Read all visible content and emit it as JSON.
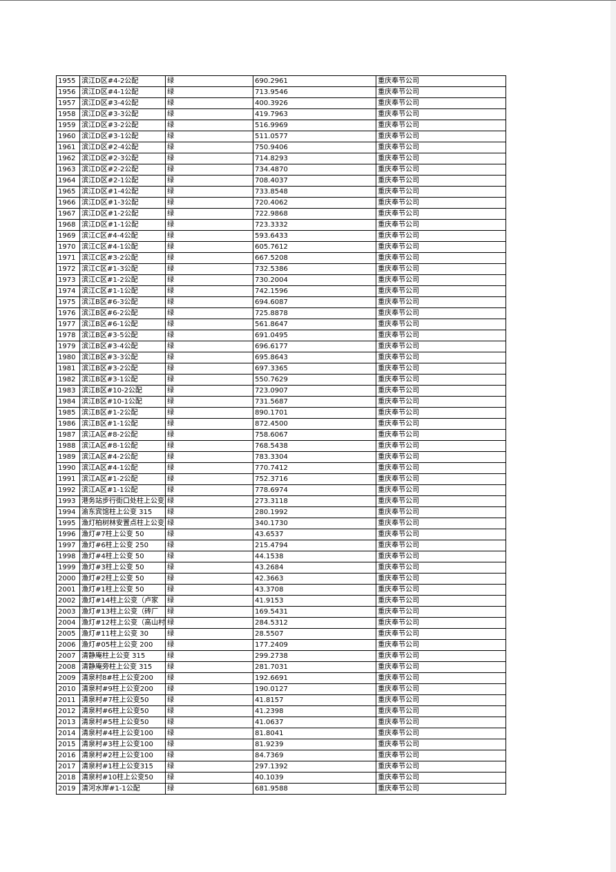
{
  "table": {
    "rows": [
      [
        "1955",
        "滨江D区#4-2公配",
        "绿",
        "690.2961",
        "重庆奉节公司"
      ],
      [
        "1956",
        "滨江D区#4-1公配",
        "绿",
        "713.9546",
        "重庆奉节公司"
      ],
      [
        "1957",
        "滨江D区#3-4公配",
        "绿",
        "400.3926",
        "重庆奉节公司"
      ],
      [
        "1958",
        "滨江D区#3-3公配",
        "绿",
        "419.7963",
        "重庆奉节公司"
      ],
      [
        "1959",
        "滨江D区#3-2公配",
        "绿",
        "516.9969",
        "重庆奉节公司"
      ],
      [
        "1960",
        "滨江D区#3-1公配",
        "绿",
        "511.0577",
        "重庆奉节公司"
      ],
      [
        "1961",
        "滨江D区#2-4公配",
        "绿",
        "750.9406",
        "重庆奉节公司"
      ],
      [
        "1962",
        "滨江D区#2-3公配",
        "绿",
        "714.8293",
        "重庆奉节公司"
      ],
      [
        "1963",
        "滨江D区#2-2公配",
        "绿",
        "734.4870",
        "重庆奉节公司"
      ],
      [
        "1964",
        "滨江D区#2-1公配",
        "绿",
        "708.4037",
        "重庆奉节公司"
      ],
      [
        "1965",
        "滨江D区#1-4公配",
        "绿",
        "733.8548",
        "重庆奉节公司"
      ],
      [
        "1966",
        "滨江D区#1-3公配",
        "绿",
        "720.4062",
        "重庆奉节公司"
      ],
      [
        "1967",
        "滨江D区#1-2公配",
        "绿",
        "722.9868",
        "重庆奉节公司"
      ],
      [
        "1968",
        "滨江D区#1-1公配",
        "绿",
        "723.3332",
        "重庆奉节公司"
      ],
      [
        "1969",
        "滨江C区#4-4公配",
        "绿",
        "593.6433",
        "重庆奉节公司"
      ],
      [
        "1970",
        "滨江C区#4-1公配",
        "绿",
        "605.7612",
        "重庆奉节公司"
      ],
      [
        "1971",
        "滨江C区#3-2公配",
        "绿",
        "667.5208",
        "重庆奉节公司"
      ],
      [
        "1972",
        "滨江C区#1-3公配",
        "绿",
        "732.5386",
        "重庆奉节公司"
      ],
      [
        "1973",
        "滨江C区#1-2公配",
        "绿",
        "730.2004",
        "重庆奉节公司"
      ],
      [
        "1974",
        "滨江C区#1-1公配",
        "绿",
        "742.1596",
        "重庆奉节公司"
      ],
      [
        "1975",
        "滨江B区#6-3公配",
        "绿",
        "694.6087",
        "重庆奉节公司"
      ],
      [
        "1976",
        "滨江B区#6-2公配",
        "绿",
        "725.8878",
        "重庆奉节公司"
      ],
      [
        "1977",
        "滨江B区#6-1公配",
        "绿",
        "561.8647",
        "重庆奉节公司"
      ],
      [
        "1978",
        "滨江B区#3-5公配",
        "绿",
        "691.0495",
        "重庆奉节公司"
      ],
      [
        "1979",
        "滨江B区#3-4公配",
        "绿",
        "696.6177",
        "重庆奉节公司"
      ],
      [
        "1980",
        "滨江B区#3-3公配",
        "绿",
        "695.8643",
        "重庆奉节公司"
      ],
      [
        "1981",
        "滨江B区#3-2公配",
        "绿",
        "697.3365",
        "重庆奉节公司"
      ],
      [
        "1982",
        "滨江B区#3-1公配",
        "绿",
        "550.7629",
        "重庆奉节公司"
      ],
      [
        "1983",
        "滨江B区#10-2公配",
        "绿",
        "723.0907",
        "重庆奉节公司"
      ],
      [
        "1984",
        "滨江B区#10-1公配",
        "绿",
        "731.5687",
        "重庆奉节公司"
      ],
      [
        "1985",
        "滨江B区#1-2公配",
        "绿",
        "890.1701",
        "重庆奉节公司"
      ],
      [
        "1986",
        "滨江B区#1-1公配",
        "绿",
        "872.4500",
        "重庆奉节公司"
      ],
      [
        "1987",
        "滨江A区#8-2公配",
        "绿",
        "758.6067",
        "重庆奉节公司"
      ],
      [
        "1988",
        "滨江A区#8-1公配",
        "绿",
        "768.5438",
        "重庆奉节公司"
      ],
      [
        "1989",
        "滨江A区#4-2公配",
        "绿",
        "783.3304",
        "重庆奉节公司"
      ],
      [
        "1990",
        "滨江A区#4-1公配",
        "绿",
        "770.7412",
        "重庆奉节公司"
      ],
      [
        "1991",
        "滨江A区#1-2公配",
        "绿",
        "752.3716",
        "重庆奉节公司"
      ],
      [
        "1992",
        "滨江A区#1-1公配",
        "绿",
        "778.6974",
        "重庆奉节公司"
      ],
      [
        "1993",
        "港务站步行街口处柱上公变",
        "绿",
        "273.3118",
        "重庆奉节公司"
      ],
      [
        "1994",
        "渝东宾馆柱上公变 315",
        "绿",
        "280.1992",
        "重庆奉节公司"
      ],
      [
        "1995",
        "渔灯柏树林安置点柱上公变",
        "绿",
        "340.1730",
        "重庆奉节公司"
      ],
      [
        "1996",
        "渔灯#7柱上公变 50",
        "绿",
        "43.6537",
        "重庆奉节公司"
      ],
      [
        "1997",
        "渔灯#6柱上公变 250",
        "绿",
        "215.4794",
        "重庆奉节公司"
      ],
      [
        "1998",
        "渔灯#4柱上公变 50",
        "绿",
        "44.1538",
        "重庆奉节公司"
      ],
      [
        "1999",
        "渔灯#3柱上公变 50",
        "绿",
        "43.2684",
        "重庆奉节公司"
      ],
      [
        "2000",
        "渔灯#2柱上公变 50",
        "绿",
        "42.3663",
        "重庆奉节公司"
      ],
      [
        "2001",
        "渔灯#1柱上公变 50",
        "绿",
        "43.3708",
        "重庆奉节公司"
      ],
      [
        "2002",
        "渔灯#14柱上公变（卢家",
        "绿",
        "41.9153",
        "重庆奉节公司"
      ],
      [
        "2003",
        "渔灯#13柱上公变（砖厂",
        "绿",
        "169.5431",
        "重庆奉节公司"
      ],
      [
        "2004",
        "渔灯#12柱上公变（高山村",
        "绿",
        "284.5312",
        "重庆奉节公司"
      ],
      [
        "2005",
        "渔灯#11柱上公变 30",
        "绿",
        "28.5507",
        "重庆奉节公司"
      ],
      [
        "2006",
        "渔灯#05柱上公变 200",
        "绿",
        "177.2409",
        "重庆奉节公司"
      ],
      [
        "2007",
        "清静庵柱上公变 315",
        "绿",
        "299.2738",
        "重庆奉节公司"
      ],
      [
        "2008",
        "清静庵旁柱上公变 315",
        "绿",
        "281.7031",
        "重庆奉节公司"
      ],
      [
        "2009",
        "清泉村8#柱上公变200",
        "绿",
        "192.6691",
        "重庆奉节公司"
      ],
      [
        "2010",
        "清泉村#9柱上公变200",
        "绿",
        "190.0127",
        "重庆奉节公司"
      ],
      [
        "2011",
        "清泉村#7柱上公变50",
        "绿",
        "41.8157",
        "重庆奉节公司"
      ],
      [
        "2012",
        "清泉村#6柱上公变50",
        "绿",
        "41.2398",
        "重庆奉节公司"
      ],
      [
        "2013",
        "清泉村#5柱上公变50",
        "绿",
        "41.0637",
        "重庆奉节公司"
      ],
      [
        "2014",
        "清泉村#4柱上公变100",
        "绿",
        "81.8041",
        "重庆奉节公司"
      ],
      [
        "2015",
        "清泉村#3柱上公变100",
        "绿",
        "81.9239",
        "重庆奉节公司"
      ],
      [
        "2016",
        "清泉村#2柱上公变100",
        "绿",
        "84.7369",
        "重庆奉节公司"
      ],
      [
        "2017",
        "清泉村#1柱上公变315",
        "绿",
        "297.1392",
        "重庆奉节公司"
      ],
      [
        "2018",
        "清泉村#10柱上公变50",
        "绿",
        "40.1039",
        "重庆奉节公司"
      ],
      [
        "2019",
        "清河水岸#1-1公配",
        "绿",
        "681.9588",
        "重庆奉节公司"
      ]
    ]
  }
}
